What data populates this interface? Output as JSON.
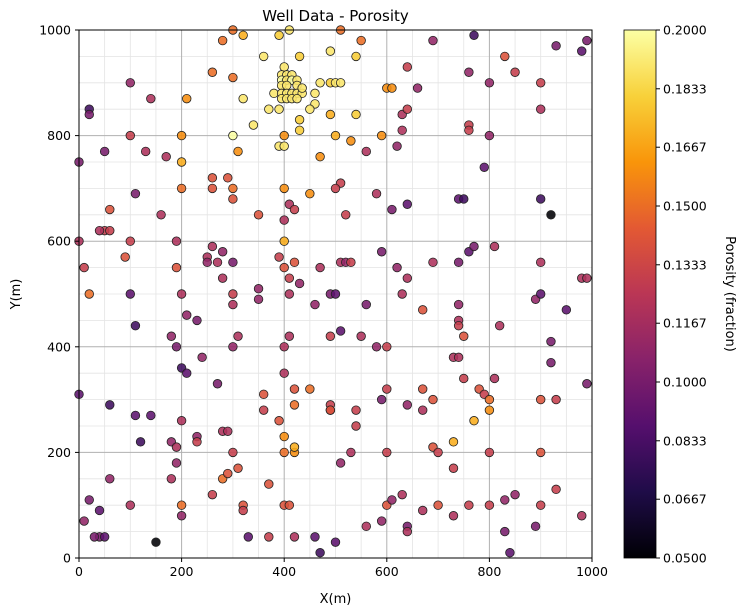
{
  "chart_data": {
    "type": "scatter",
    "title": "Well Data - Porosity",
    "xlabel": "X(m)",
    "ylabel": "Y(m)",
    "xlim": [
      0,
      1000
    ],
    "ylim": [
      0,
      1000
    ],
    "xticks": [
      0,
      200,
      400,
      600,
      800,
      1000
    ],
    "yticks": [
      0,
      200,
      400,
      600,
      800,
      1000
    ],
    "grid": true,
    "colormap": "inferno",
    "colorbar": {
      "label": "Porosity (fraction)",
      "range": [
        0.05,
        0.2
      ],
      "ticks": [
        "0.0500",
        "0.0667",
        "0.0833",
        "0.1000",
        "0.1167",
        "0.1333",
        "0.1500",
        "0.1667",
        "0.1833",
        "0.2000"
      ]
    },
    "points": [
      [
        320,
        990,
        0.17
      ],
      [
        280,
        980,
        0.15
      ],
      [
        390,
        990,
        0.18
      ],
      [
        410,
        1000,
        0.19
      ],
      [
        300,
        1000,
        0.15
      ],
      [
        510,
        1000,
        0.15
      ],
      [
        550,
        980,
        0.15
      ],
      [
        490,
        960,
        0.19
      ],
      [
        690,
        980,
        0.11
      ],
      [
        770,
        990,
        0.08
      ],
      [
        930,
        970,
        0.1
      ],
      [
        980,
        960,
        0.09
      ],
      [
        990,
        980,
        0.1
      ],
      [
        360,
        950,
        0.19
      ],
      [
        400,
        930,
        0.19
      ],
      [
        430,
        950,
        0.18
      ],
      [
        540,
        950,
        0.18
      ],
      [
        640,
        930,
        0.13
      ],
      [
        660,
        890,
        0.11
      ],
      [
        600,
        890,
        0.16
      ],
      [
        610,
        890,
        0.16
      ],
      [
        760,
        920,
        0.11
      ],
      [
        800,
        900,
        0.11
      ],
      [
        830,
        950,
        0.14
      ],
      [
        850,
        920,
        0.13
      ],
      [
        900,
        900,
        0.13
      ],
      [
        20,
        850,
        0.08
      ],
      [
        20,
        840,
        0.1
      ],
      [
        100,
        900,
        0.11
      ],
      [
        140,
        870,
        0.12
      ],
      [
        210,
        870,
        0.16
      ],
      [
        260,
        920,
        0.15
      ],
      [
        300,
        910,
        0.15
      ],
      [
        320,
        870,
        0.19
      ],
      [
        340,
        820,
        0.19
      ],
      [
        370,
        850,
        0.19
      ],
      [
        380,
        880,
        0.19
      ],
      [
        390,
        850,
        0.19
      ],
      [
        395,
        915,
        0.19
      ],
      [
        405,
        915,
        0.19
      ],
      [
        415,
        915,
        0.19
      ],
      [
        395,
        905,
        0.2
      ],
      [
        405,
        905,
        0.19
      ],
      [
        415,
        905,
        0.2
      ],
      [
        425,
        905,
        0.19
      ],
      [
        395,
        895,
        0.19
      ],
      [
        405,
        895,
        0.19
      ],
      [
        425,
        895,
        0.19
      ],
      [
        395,
        880,
        0.19
      ],
      [
        405,
        880,
        0.19
      ],
      [
        415,
        880,
        0.19
      ],
      [
        425,
        880,
        0.19
      ],
      [
        435,
        880,
        0.19
      ],
      [
        395,
        870,
        0.19
      ],
      [
        405,
        870,
        0.19
      ],
      [
        415,
        870,
        0.19
      ],
      [
        425,
        870,
        0.19
      ],
      [
        435,
        890,
        0.19
      ],
      [
        460,
        880,
        0.19
      ],
      [
        470,
        900,
        0.19
      ],
      [
        460,
        860,
        0.19
      ],
      [
        450,
        850,
        0.19
      ],
      [
        430,
        830,
        0.18
      ],
      [
        490,
        900,
        0.18
      ],
      [
        500,
        900,
        0.19
      ],
      [
        510,
        900,
        0.19
      ],
      [
        490,
        840,
        0.17
      ],
      [
        500,
        800,
        0.17
      ],
      [
        540,
        840,
        0.18
      ],
      [
        530,
        790,
        0.16
      ],
      [
        300,
        800,
        0.2
      ],
      [
        310,
        770,
        0.16
      ],
      [
        390,
        780,
        0.19
      ],
      [
        400,
        780,
        0.19
      ],
      [
        400,
        800,
        0.16
      ],
      [
        430,
        810,
        0.18
      ],
      [
        470,
        760,
        0.16
      ],
      [
        560,
        770,
        0.12
      ],
      [
        590,
        800,
        0.16
      ],
      [
        620,
        780,
        0.11
      ],
      [
        630,
        810,
        0.12
      ],
      [
        630,
        840,
        0.12
      ],
      [
        640,
        850,
        0.13
      ],
      [
        760,
        820,
        0.13
      ],
      [
        760,
        810,
        0.13
      ],
      [
        800,
        800,
        0.11
      ],
      [
        900,
        850,
        0.12
      ],
      [
        790,
        740,
        0.09
      ],
      [
        50,
        770,
        0.1
      ],
      [
        100,
        800,
        0.13
      ],
      [
        130,
        770,
        0.12
      ],
      [
        170,
        760,
        0.12
      ],
      [
        200,
        800,
        0.16
      ],
      [
        200,
        750,
        0.17
      ],
      [
        0,
        750,
        0.1
      ],
      [
        60,
        660,
        0.14
      ],
      [
        50,
        620,
        0.13
      ],
      [
        40,
        620,
        0.12
      ],
      [
        60,
        620,
        0.13
      ],
      [
        100,
        600,
        0.13
      ],
      [
        110,
        690,
        0.1
      ],
      [
        160,
        650,
        0.12
      ],
      [
        200,
        700,
        0.15
      ],
      [
        260,
        720,
        0.14
      ],
      [
        260,
        700,
        0.14
      ],
      [
        290,
        720,
        0.14
      ],
      [
        300,
        700,
        0.15
      ],
      [
        300,
        680,
        0.14
      ],
      [
        350,
        650,
        0.14
      ],
      [
        400,
        700,
        0.16
      ],
      [
        410,
        670,
        0.12
      ],
      [
        420,
        660,
        0.13
      ],
      [
        400,
        640,
        0.12
      ],
      [
        400,
        600,
        0.17
      ],
      [
        450,
        690,
        0.16
      ],
      [
        510,
        710,
        0.13
      ],
      [
        500,
        700,
        0.13
      ],
      [
        520,
        650,
        0.13
      ],
      [
        580,
        690,
        0.12
      ],
      [
        610,
        660,
        0.1
      ],
      [
        640,
        670,
        0.09
      ],
      [
        740,
        680,
        0.09
      ],
      [
        750,
        680,
        0.08
      ],
      [
        900,
        680,
        0.08
      ],
      [
        920,
        650,
        0.05
      ],
      [
        0,
        600,
        0.12
      ],
      [
        10,
        550,
        0.13
      ],
      [
        20,
        500,
        0.15
      ],
      [
        90,
        570,
        0.14
      ],
      [
        100,
        500,
        0.09
      ],
      [
        190,
        600,
        0.12
      ],
      [
        190,
        550,
        0.14
      ],
      [
        250,
        570,
        0.12
      ],
      [
        250,
        560,
        0.11
      ],
      [
        260,
        590,
        0.12
      ],
      [
        270,
        560,
        0.12
      ],
      [
        280,
        530,
        0.12
      ],
      [
        300,
        560,
        0.1
      ],
      [
        300,
        500,
        0.13
      ],
      [
        350,
        510,
        0.11
      ],
      [
        350,
        490,
        0.11
      ],
      [
        400,
        550,
        0.14
      ],
      [
        420,
        560,
        0.14
      ],
      [
        410,
        500,
        0.12
      ],
      [
        390,
        570,
        0.13
      ],
      [
        410,
        530,
        0.13
      ],
      [
        430,
        520,
        0.11
      ],
      [
        460,
        480,
        0.11
      ],
      [
        470,
        550,
        0.12
      ],
      [
        490,
        500,
        0.1
      ],
      [
        500,
        500,
        0.09
      ],
      [
        510,
        560,
        0.12
      ],
      [
        520,
        560,
        0.11
      ],
      [
        530,
        560,
        0.13
      ],
      [
        560,
        480,
        0.1
      ],
      [
        590,
        580,
        0.1
      ],
      [
        620,
        550,
        0.11
      ],
      [
        640,
        530,
        0.12
      ],
      [
        690,
        560,
        0.12
      ],
      [
        740,
        560,
        0.1
      ],
      [
        760,
        580,
        0.09
      ],
      [
        770,
        590,
        0.1
      ],
      [
        810,
        590,
        0.12
      ],
      [
        900,
        560,
        0.12
      ],
      [
        890,
        490,
        0.11
      ],
      [
        900,
        500,
        0.09
      ],
      [
        950,
        470,
        0.09
      ],
      [
        980,
        530,
        0.12
      ],
      [
        990,
        530,
        0.12
      ],
      [
        200,
        500,
        0.12
      ],
      [
        280,
        580,
        0.11
      ],
      [
        110,
        440,
        0.08
      ],
      [
        180,
        420,
        0.11
      ],
      [
        190,
        400,
        0.1
      ],
      [
        200,
        360,
        0.08
      ],
      [
        210,
        350,
        0.09
      ],
      [
        210,
        460,
        0.11
      ],
      [
        230,
        450,
        0.1
      ],
      [
        240,
        380,
        0.11
      ],
      [
        300,
        400,
        0.11
      ],
      [
        310,
        420,
        0.12
      ],
      [
        270,
        330,
        0.1
      ],
      [
        300,
        480,
        0.12
      ],
      [
        400,
        400,
        0.12
      ],
      [
        410,
        420,
        0.12
      ],
      [
        400,
        350,
        0.12
      ],
      [
        490,
        420,
        0.13
      ],
      [
        510,
        430,
        0.09
      ],
      [
        550,
        420,
        0.12
      ],
      [
        580,
        400,
        0.11
      ],
      [
        600,
        400,
        0.13
      ],
      [
        630,
        500,
        0.12
      ],
      [
        670,
        470,
        0.14
      ],
      [
        740,
        480,
        0.11
      ],
      [
        740,
        450,
        0.12
      ],
      [
        740,
        440,
        0.13
      ],
      [
        730,
        380,
        0.12
      ],
      [
        740,
        380,
        0.12
      ],
      [
        750,
        420,
        0.14
      ],
      [
        820,
        440,
        0.12
      ],
      [
        920,
        410,
        0.1
      ],
      [
        920,
        370,
        0.1
      ],
      [
        0,
        310,
        0.09
      ],
      [
        60,
        290,
        0.08
      ],
      [
        110,
        270,
        0.09
      ],
      [
        140,
        270,
        0.09
      ],
      [
        180,
        220,
        0.11
      ],
      [
        190,
        210,
        0.12
      ],
      [
        200,
        260,
        0.12
      ],
      [
        230,
        230,
        0.11
      ],
      [
        280,
        240,
        0.12
      ],
      [
        290,
        240,
        0.12
      ],
      [
        360,
        310,
        0.14
      ],
      [
        360,
        280,
        0.13
      ],
      [
        390,
        260,
        0.14
      ],
      [
        400,
        230,
        0.16
      ],
      [
        420,
        320,
        0.14
      ],
      [
        420,
        290,
        0.15
      ],
      [
        450,
        320,
        0.15
      ],
      [
        490,
        290,
        0.13
      ],
      [
        490,
        280,
        0.13
      ],
      [
        490,
        280,
        0.14
      ],
      [
        540,
        280,
        0.13
      ],
      [
        540,
        250,
        0.13
      ],
      [
        590,
        300,
        0.1
      ],
      [
        600,
        320,
        0.13
      ],
      [
        640,
        290,
        0.11
      ],
      [
        670,
        320,
        0.14
      ],
      [
        670,
        280,
        0.12
      ],
      [
        690,
        300,
        0.14
      ],
      [
        750,
        340,
        0.13
      ],
      [
        780,
        320,
        0.14
      ],
      [
        790,
        310,
        0.13
      ],
      [
        800,
        300,
        0.15
      ],
      [
        800,
        280,
        0.16
      ],
      [
        770,
        260,
        0.17
      ],
      [
        810,
        340,
        0.12
      ],
      [
        900,
        300,
        0.14
      ],
      [
        930,
        300,
        0.13
      ],
      [
        990,
        330,
        0.1
      ],
      [
        20,
        110,
        0.1
      ],
      [
        40,
        90,
        0.09
      ],
      [
        60,
        150,
        0.11
      ],
      [
        100,
        100,
        0.12
      ],
      [
        120,
        220,
        0.08
      ],
      [
        150,
        30,
        0.05
      ],
      [
        180,
        150,
        0.12
      ],
      [
        190,
        180,
        0.11
      ],
      [
        200,
        100,
        0.15
      ],
      [
        200,
        80,
        0.11
      ],
      [
        230,
        220,
        0.13
      ],
      [
        280,
        150,
        0.15
      ],
      [
        300,
        200,
        0.13
      ],
      [
        310,
        170,
        0.14
      ],
      [
        320,
        100,
        0.14
      ],
      [
        330,
        40,
        0.09
      ],
      [
        320,
        90,
        0.13
      ],
      [
        370,
        140,
        0.14
      ],
      [
        370,
        40,
        0.13
      ],
      [
        400,
        100,
        0.14
      ],
      [
        410,
        100,
        0.14
      ],
      [
        400,
        200,
        0.15
      ],
      [
        420,
        200,
        0.16
      ],
      [
        420,
        210,
        0.17
      ],
      [
        420,
        40,
        0.12
      ],
      [
        460,
        40,
        0.09
      ],
      [
        470,
        10,
        0.08
      ],
      [
        500,
        30,
        0.09
      ],
      [
        510,
        180,
        0.11
      ],
      [
        530,
        200,
        0.12
      ],
      [
        560,
        60,
        0.12
      ],
      [
        590,
        70,
        0.11
      ],
      [
        600,
        200,
        0.13
      ],
      [
        600,
        100,
        0.14
      ],
      [
        610,
        110,
        0.11
      ],
      [
        630,
        120,
        0.12
      ],
      [
        640,
        60,
        0.1
      ],
      [
        640,
        50,
        0.12
      ],
      [
        670,
        90,
        0.12
      ],
      [
        690,
        210,
        0.14
      ],
      [
        700,
        200,
        0.13
      ],
      [
        700,
        100,
        0.14
      ],
      [
        730,
        220,
        0.17
      ],
      [
        730,
        170,
        0.13
      ],
      [
        730,
        80,
        0.12
      ],
      [
        760,
        100,
        0.13
      ],
      [
        800,
        200,
        0.13
      ],
      [
        800,
        100,
        0.13
      ],
      [
        830,
        110,
        0.11
      ],
      [
        830,
        50,
        0.1
      ],
      [
        840,
        10,
        0.09
      ],
      [
        850,
        120,
        0.11
      ],
      [
        890,
        60,
        0.1
      ],
      [
        900,
        200,
        0.14
      ],
      [
        900,
        100,
        0.13
      ],
      [
        930,
        130,
        0.13
      ],
      [
        980,
        80,
        0.12
      ],
      [
        40,
        40,
        0.1
      ],
      [
        50,
        40,
        0.09
      ],
      [
        30,
        40,
        0.1
      ],
      [
        10,
        70,
        0.11
      ],
      [
        260,
        120,
        0.13
      ],
      [
        290,
        160,
        0.14
      ]
    ]
  }
}
